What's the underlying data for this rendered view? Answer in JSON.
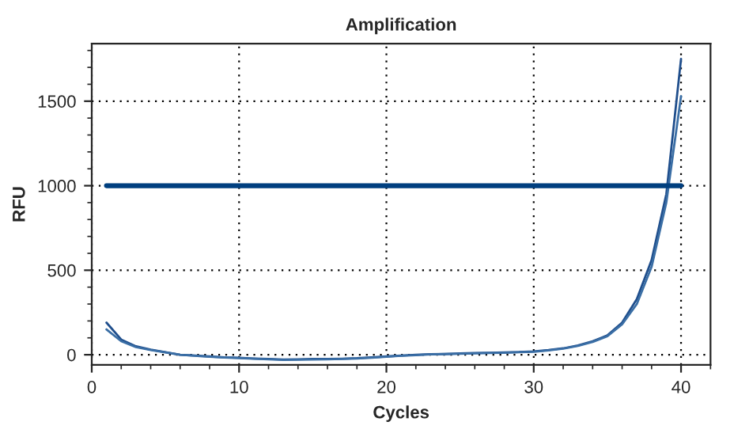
{
  "chart_data": {
    "type": "line",
    "title": "Amplification",
    "xlabel": "Cycles",
    "ylabel": "RFU",
    "x": [
      1,
      2,
      3,
      4,
      5,
      6,
      7,
      8,
      9,
      10,
      11,
      12,
      13,
      14,
      15,
      16,
      17,
      18,
      19,
      20,
      21,
      22,
      23,
      24,
      25,
      26,
      27,
      28,
      29,
      30,
      31,
      32,
      33,
      34,
      35,
      36,
      37,
      38,
      39,
      40
    ],
    "series": [
      {
        "color": "#1f4e8c",
        "values": [
          190,
          90,
          50,
          30,
          15,
          0,
          -5,
          -10,
          -15,
          -18,
          -22,
          -25,
          -28,
          -27,
          -25,
          -25,
          -23,
          -20,
          -15,
          -10,
          -5,
          0,
          3,
          5,
          8,
          10,
          12,
          14,
          16,
          20,
          28,
          38,
          55,
          80,
          115,
          190,
          330,
          560,
          950,
          1750
        ]
      },
      {
        "color": "#3a6ea5",
        "values": [
          150,
          80,
          45,
          28,
          14,
          0,
          -6,
          -12,
          -16,
          -20,
          -24,
          -27,
          -30,
          -29,
          -28,
          -27,
          -25,
          -22,
          -18,
          -12,
          -6,
          -2,
          2,
          4,
          6,
          8,
          10,
          12,
          15,
          18,
          26,
          36,
          52,
          76,
          110,
          180,
          300,
          520,
          900,
          1530
        ]
      },
      {
        "color": "#003f7f",
        "x": [
          1,
          40
        ],
        "values": [
          1000,
          1000
        ]
      }
    ],
    "xlim": [
      0,
      42
    ],
    "xticks": [
      0,
      10,
      20,
      30,
      40
    ],
    "ylim": [
      -60,
      1840
    ],
    "yticks": [
      0,
      500,
      1000,
      1500
    ],
    "grid": true,
    "line_style": "solid",
    "marker": "none"
  }
}
